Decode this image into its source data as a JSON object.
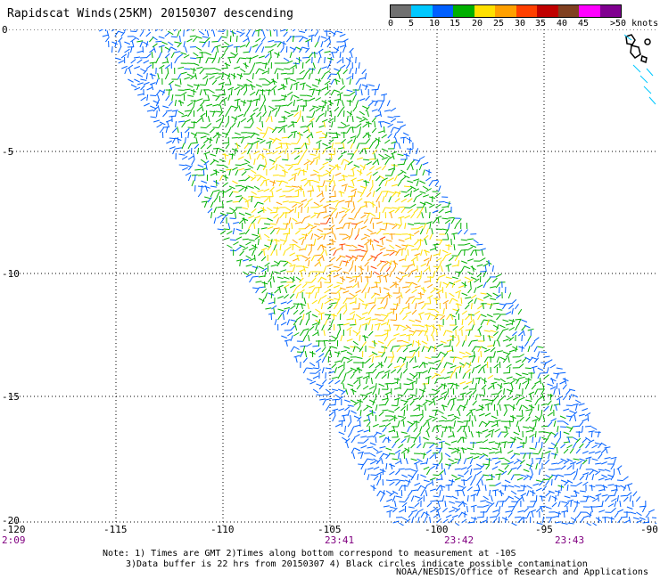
{
  "title": "Rapidscat Winds(25KM) 20150307 descending",
  "scale": {
    "colors": [
      "#707070",
      "#00c8ff",
      "#0060ff",
      "#00b000",
      "#ffe000",
      "#ffa000",
      "#ff4000",
      "#c00000",
      "#804020",
      "#ff00ff",
      "#800090"
    ],
    "labels": [
      "0",
      "5",
      "10",
      "15",
      "20",
      "25",
      "30",
      "35",
      "40",
      "45",
      ">50 knots"
    ]
  },
  "axes": {
    "y_labels": [
      "0",
      "-5",
      "-10",
      "-15",
      "-20"
    ],
    "x_labels": [
      "-120",
      "-115",
      "-110",
      "-105",
      "-100",
      "-95",
      "-90"
    ]
  },
  "times": [
    "2:09",
    "23:41",
    "23:42",
    "23:43"
  ],
  "notes": {
    "line1": "Note: 1) Times are GMT 2)Times along bottom correspond to measurement at -10S",
    "line2": "3)Data buffer is 22 hrs from 20150307 4) Black circles indicate possible contamination"
  },
  "credit": "NOAA/NESDIS/Office of Research and Applications"
}
